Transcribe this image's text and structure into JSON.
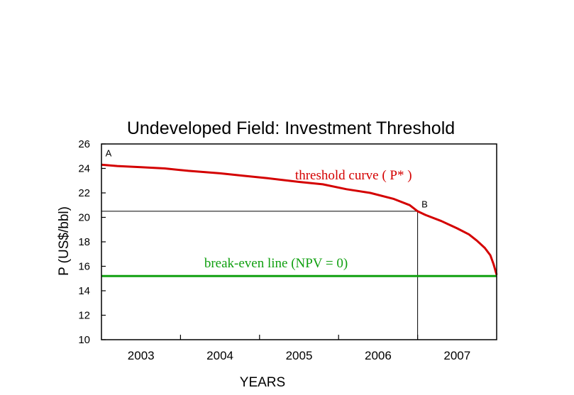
{
  "chart_data": {
    "type": "line",
    "title": "Undeveloped Field: Investment Threshold",
    "xlabel": "YEARS",
    "ylabel": "P (US$/bbl)",
    "xlim": [
      2002.5,
      2007.5
    ],
    "ylim": [
      10,
      26
    ],
    "yticks": [
      10,
      12,
      14,
      16,
      18,
      20,
      22,
      24,
      26
    ],
    "ytick_labels": [
      "10",
      "12",
      "14",
      "16",
      "18",
      "20",
      "22",
      "24",
      "26"
    ],
    "year_labels": [
      {
        "label": "2003",
        "x": 2003
      },
      {
        "label": "2004",
        "x": 2004
      },
      {
        "label": "2005",
        "x": 2005
      },
      {
        "label": "2006",
        "x": 2006
      },
      {
        "label": "2007",
        "x": 2007
      }
    ],
    "x_dividers": [
      2003.5,
      2004.5,
      2005.5,
      2006.5
    ],
    "series": [
      {
        "name": "threshold curve ( P* )",
        "color": "#d40000",
        "x": [
          2002.5,
          2002.7,
          2003.0,
          2003.3,
          2003.6,
          2004.0,
          2004.3,
          2004.6,
          2005.0,
          2005.3,
          2005.6,
          2005.9,
          2006.2,
          2006.4,
          2006.5,
          2006.6,
          2006.8,
          2007.0,
          2007.15,
          2007.25,
          2007.35,
          2007.42,
          2007.46,
          2007.5
        ],
        "y": [
          24.3,
          24.2,
          24.1,
          24.0,
          23.8,
          23.6,
          23.4,
          23.2,
          22.9,
          22.7,
          22.3,
          22.0,
          21.5,
          21.0,
          20.5,
          20.2,
          19.7,
          19.1,
          18.6,
          18.1,
          17.5,
          16.9,
          16.2,
          15.3
        ]
      },
      {
        "name": "break-even line (NPV = 0)",
        "color": "#10a010",
        "x": [
          2002.5,
          2007.5
        ],
        "y": [
          15.2,
          15.2
        ]
      }
    ],
    "reference_lines": {
      "price": 20.5,
      "year": 2006.5
    },
    "annotations": [
      {
        "text": "A",
        "x": 2002.55,
        "y": 25.0
      },
      {
        "text": "B",
        "x": 2006.55,
        "y": 20.8
      },
      {
        "text": "threshold curve ( P* )",
        "x": 2004.95,
        "y": 23.1
      },
      {
        "text": "break-even line (NPV = 0)",
        "x": 2003.8,
        "y": 15.9
      }
    ]
  }
}
